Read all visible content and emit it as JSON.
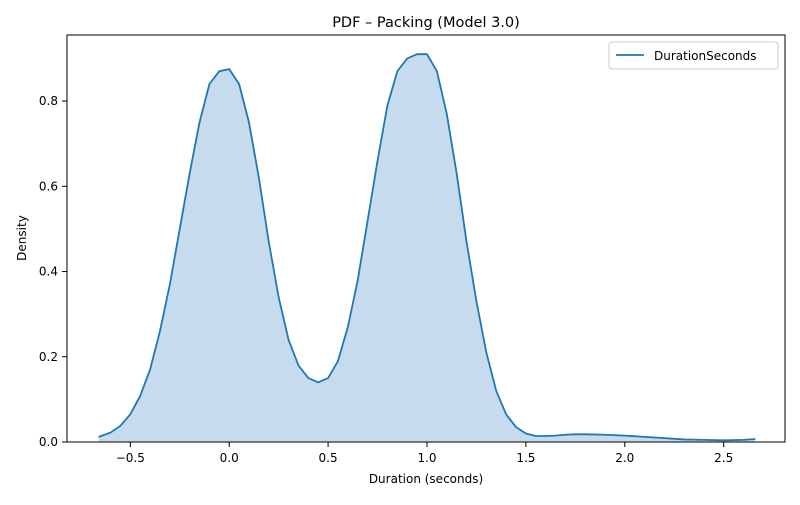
{
  "chart_data": {
    "type": "area",
    "title": "PDF – Packing (Model 3.0)",
    "xlabel": "Duration (seconds)",
    "ylabel": "Density",
    "xlim": [
      -0.82,
      2.81
    ],
    "ylim": [
      0,
      0.955
    ],
    "xticks": [
      -0.5,
      0.0,
      0.5,
      1.0,
      1.5,
      2.0,
      2.5
    ],
    "xtick_labels": [
      "−0.5",
      "0.0",
      "0.5",
      "1.0",
      "1.5",
      "2.0",
      "2.5"
    ],
    "yticks": [
      0.0,
      0.2,
      0.4,
      0.6,
      0.8
    ],
    "ytick_labels": [
      "0.0",
      "0.2",
      "0.4",
      "0.6",
      "0.8"
    ],
    "grid": false,
    "legend": {
      "placement": "top-right",
      "entries": [
        "DurationSeconds"
      ]
    },
    "colors": {
      "line": "#1f77b4",
      "fill": "#c6dbed"
    },
    "series": [
      {
        "name": "DurationSeconds",
        "x": [
          -0.66,
          -0.6,
          -0.55,
          -0.5,
          -0.45,
          -0.4,
          -0.35,
          -0.3,
          -0.25,
          -0.2,
          -0.15,
          -0.1,
          -0.05,
          0.0,
          0.05,
          0.1,
          0.15,
          0.2,
          0.25,
          0.3,
          0.35,
          0.4,
          0.45,
          0.5,
          0.55,
          0.6,
          0.65,
          0.7,
          0.75,
          0.8,
          0.85,
          0.9,
          0.95,
          1.0,
          1.05,
          1.1,
          1.15,
          1.2,
          1.25,
          1.3,
          1.35,
          1.4,
          1.45,
          1.5,
          1.55,
          1.6,
          1.65,
          1.7,
          1.75,
          1.8,
          1.9,
          2.0,
          2.1,
          2.2,
          2.3,
          2.4,
          2.5,
          2.6,
          2.66
        ],
        "y": [
          0.012,
          0.022,
          0.038,
          0.065,
          0.108,
          0.17,
          0.26,
          0.37,
          0.5,
          0.63,
          0.75,
          0.84,
          0.87,
          0.875,
          0.84,
          0.75,
          0.62,
          0.47,
          0.34,
          0.24,
          0.18,
          0.15,
          0.14,
          0.15,
          0.19,
          0.27,
          0.38,
          0.52,
          0.66,
          0.79,
          0.87,
          0.9,
          0.91,
          0.91,
          0.87,
          0.77,
          0.63,
          0.47,
          0.33,
          0.21,
          0.12,
          0.065,
          0.035,
          0.02,
          0.014,
          0.014,
          0.015,
          0.017,
          0.018,
          0.018,
          0.017,
          0.015,
          0.012,
          0.009,
          0.006,
          0.005,
          0.004,
          0.005,
          0.007
        ]
      }
    ]
  }
}
